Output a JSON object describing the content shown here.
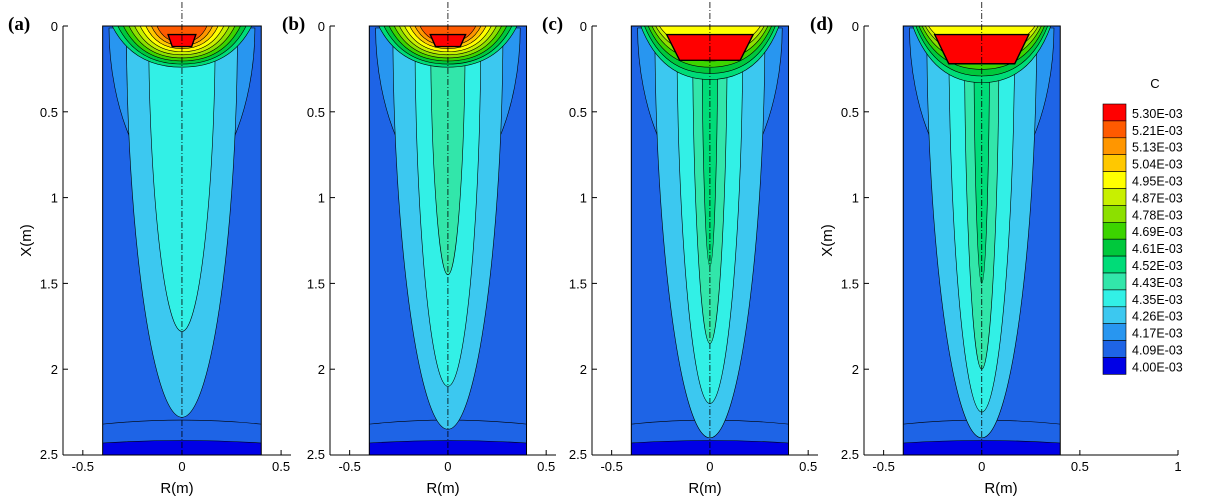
{
  "chart_data": {
    "type": "heatmap",
    "colorbar": {
      "title": "C",
      "levels": [
        "5.30E-03",
        "5.21E-03",
        "5.13E-03",
        "5.04E-03",
        "4.95E-03",
        "4.87E-03",
        "4.78E-03",
        "4.69E-03",
        "4.61E-03",
        "4.52E-03",
        "4.43E-03",
        "4.35E-03",
        "4.26E-03",
        "4.17E-03",
        "4.09E-03",
        "4.00E-03"
      ],
      "colors": [
        "#ff0000",
        "#ff5a00",
        "#ff9600",
        "#ffc800",
        "#ffff00",
        "#c8f000",
        "#8ce000",
        "#3cd400",
        "#00c83c",
        "#00dc78",
        "#32e6aa",
        "#32f0e6",
        "#3cc8f0",
        "#2896f0",
        "#1e64e6",
        "#0000e6"
      ]
    },
    "panels": [
      {
        "label": "(a)",
        "xlabel": "R(m)",
        "ylabel": "X(m)",
        "show_ylabel": true,
        "xlim": [
          -0.6,
          0.55
        ],
        "ylim": [
          0,
          2.5
        ],
        "xticks": [
          -0.5,
          0,
          0.5
        ],
        "xtick_labels": [
          "-0.5",
          "0",
          "0.5"
        ],
        "yticks": [
          0,
          0.5,
          1,
          1.5,
          2,
          2.5
        ],
        "ytick_labels": [
          "0",
          "0.5",
          "1",
          "1.5",
          "2",
          "2.5"
        ],
        "plume_depth": [
          0.95,
          2.28,
          1.78,
          0,
          0
        ],
        "hot_core": {
          "half_width": 0.07,
          "depth": 0.12
        },
        "shallow_bands": 9
      },
      {
        "label": "(b)",
        "xlabel": "R(m)",
        "ylabel": "X(m)",
        "show_ylabel": false,
        "xlim": [
          -0.6,
          0.55
        ],
        "ylim": [
          0,
          2.5
        ],
        "xticks": [
          -0.5,
          0,
          0.5
        ],
        "xtick_labels": [
          "-0.5",
          "0",
          "0.5"
        ],
        "yticks": [
          0,
          0.5,
          1,
          1.5,
          2,
          2.5
        ],
        "ytick_labels": [
          "0",
          "0.5",
          "1",
          "1.5",
          "2",
          "2.5"
        ],
        "plume_depth": [
          0.95,
          2.35,
          2.1,
          1.45,
          0
        ],
        "hot_core": {
          "half_width": 0.09,
          "depth": 0.12
        },
        "shallow_bands": 9
      },
      {
        "label": "(c)",
        "xlabel": "R(m)",
        "ylabel": "X(m)",
        "show_ylabel": false,
        "xlim": [
          -0.6,
          0.55
        ],
        "ylim": [
          0,
          2.5
        ],
        "xticks": [
          -0.5,
          0,
          0.5
        ],
        "xtick_labels": [
          "-0.5",
          "0",
          "0.5"
        ],
        "yticks": [
          0,
          0.5,
          1,
          1.5,
          2,
          2.5
        ],
        "ytick_labels": [
          "0",
          "0.5",
          "1",
          "1.5",
          "2",
          "2.5"
        ],
        "plume_depth": [
          0.95,
          2.4,
          2.2,
          1.85,
          1.4
        ],
        "hot_core": {
          "half_width": 0.22,
          "depth": 0.2
        },
        "shallow_bands": 6
      },
      {
        "label": "(d)",
        "xlabel": "R(m)",
        "ylabel": "X(m)",
        "show_ylabel": true,
        "xlim": [
          -0.6,
          1.0
        ],
        "ylim": [
          0,
          2.5
        ],
        "xticks": [
          -0.5,
          0,
          0.5,
          1
        ],
        "xtick_labels": [
          "-0.5",
          "0",
          "0.5",
          "1"
        ],
        "yticks": [
          0,
          0.5,
          1,
          1.5,
          2,
          2.5
        ],
        "ytick_labels": [
          "0",
          "0.5",
          "1",
          "1.5",
          "2",
          "2.5"
        ],
        "plume_depth": [
          0.95,
          2.4,
          2.25,
          2.0,
          1.5
        ],
        "hot_core": {
          "half_width": 0.24,
          "depth": 0.22
        },
        "shallow_bands": 6
      }
    ]
  }
}
